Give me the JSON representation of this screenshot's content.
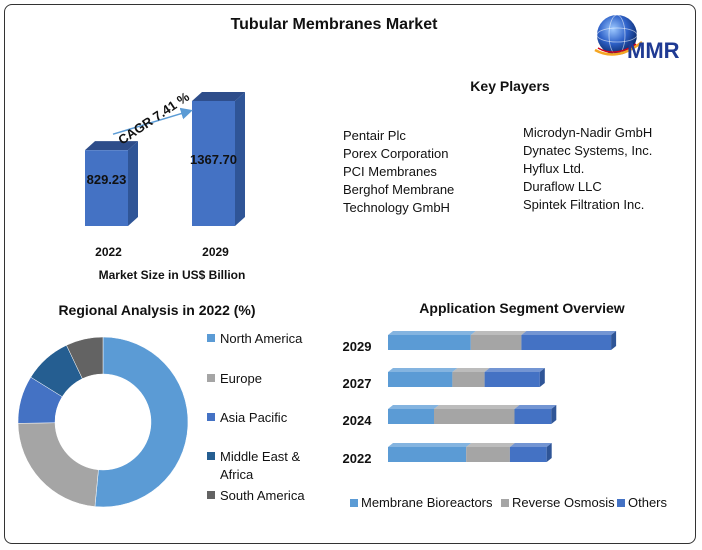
{
  "title": "Tubular Membranes Market",
  "logo": {
    "text": "MMR",
    "icon": "globe-icon"
  },
  "key_players": {
    "title": "Key Players",
    "left": [
      "Pentair Plc",
      "Porex Corporation",
      "PCI Membranes",
      "Berghof Membrane",
      "Technology GmbH"
    ],
    "right": [
      "Microdyn-Nadir GmbH",
      "Dynatec Systems, Inc.",
      "Hyflux Ltd.",
      "Duraflow LLC",
      "Spintek Filtration Inc."
    ]
  },
  "colors": {
    "bar": "#4472C4",
    "bar_top": "#2E4D8A",
    "bar_side": "#2F5597",
    "arrow": "#5B9BD5",
    "north_america": "#5B9BD5",
    "europe": "#A5A5A5",
    "asia_pacific": "#4472C4",
    "middle_east_africa": "#255E91",
    "south_america": "#636363",
    "membrane_bioreactors": "#5B9BD5",
    "reverse_osmosis": "#A5A5A5",
    "others": "#4472C4"
  },
  "chart_data": [
    {
      "type": "bar",
      "categories": [
        "2022",
        "2029"
      ],
      "values": [
        829.23,
        1367.7
      ],
      "value_labels": [
        "829.23",
        "1367.70"
      ],
      "xlabel": "Market Size in US$ Billion",
      "annotation": "CAGR 7.41 %",
      "ylim": [
        0,
        1400
      ]
    },
    {
      "type": "pie",
      "title": "Regional Analysis in 2022 (%)",
      "categories": [
        "North America",
        "Europe",
        "Asia Pacific",
        "Middle East & Africa",
        "South America"
      ],
      "legend_lines": [
        [
          "North America"
        ],
        [
          "Europe"
        ],
        [
          "Asia Pacific"
        ],
        [
          "Middle East &",
          "Africa"
        ],
        [
          "South America"
        ]
      ],
      "values": [
        51,
        23,
        9,
        9,
        7
      ],
      "donut": true,
      "legend": "right"
    },
    {
      "type": "bar",
      "title": "Application Segment Overview",
      "orientation": "horizontal",
      "stacked": true,
      "categories": [
        "2029",
        "2027",
        "2024",
        "2022"
      ],
      "series": [
        {
          "name": "Membrane Bioreactors",
          "values": [
            36,
            28,
            20,
            34
          ]
        },
        {
          "name": "Reverse Osmosis",
          "values": [
            22,
            14,
            35,
            19
          ]
        },
        {
          "name": "Others",
          "values": [
            39,
            24,
            16,
            16
          ]
        }
      ],
      "xlim": [
        0,
        100
      ],
      "legend": "bottom"
    }
  ]
}
